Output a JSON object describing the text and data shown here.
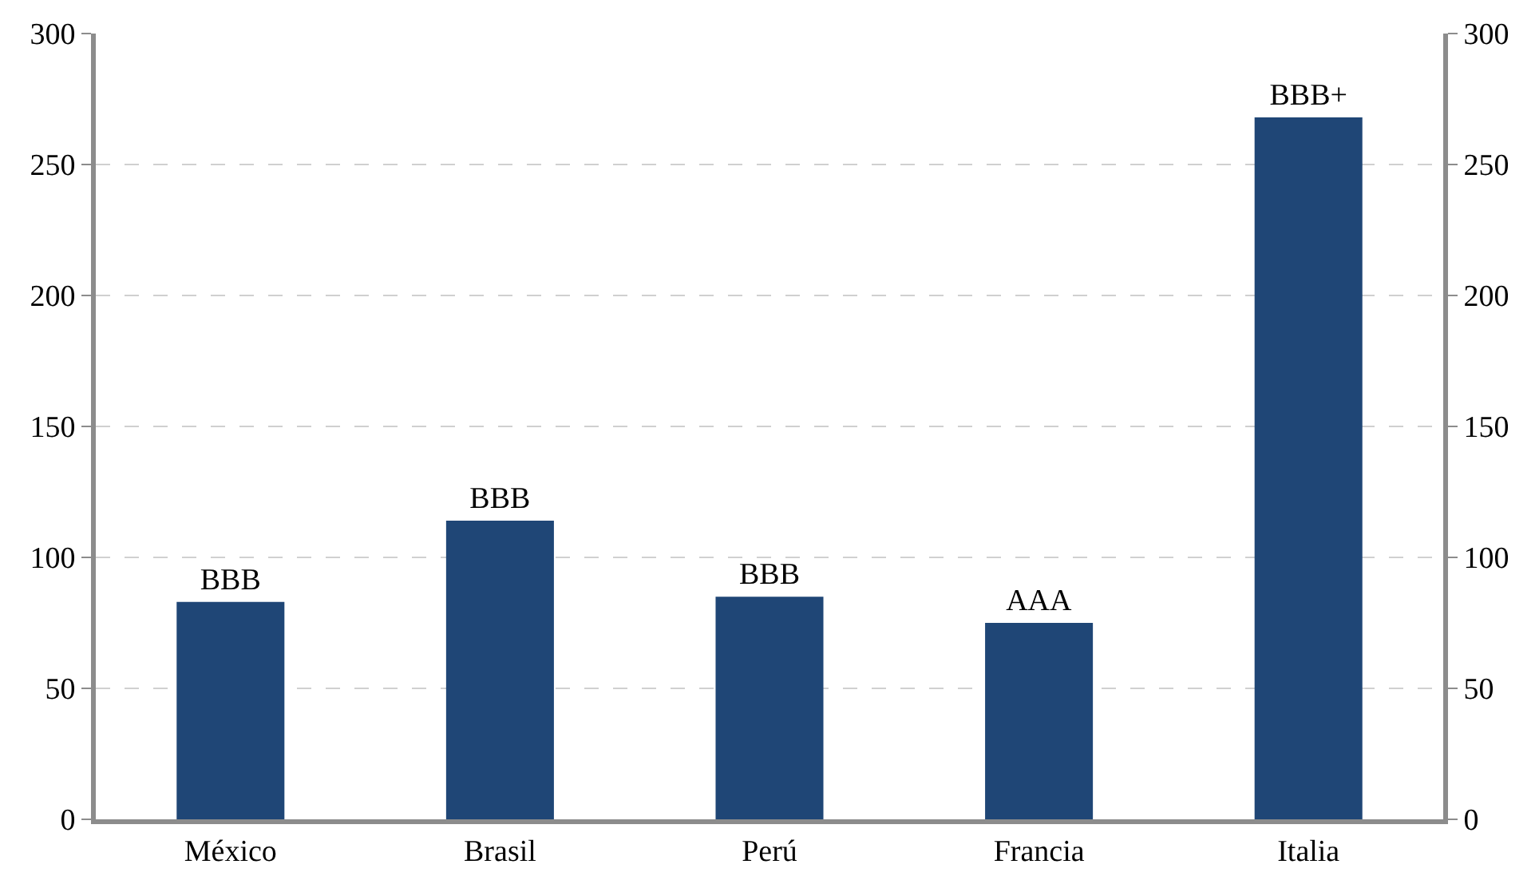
{
  "chart_data": {
    "type": "bar",
    "categories": [
      "México",
      "Brasil",
      "Perú",
      "Francia",
      "Italia"
    ],
    "values": [
      83,
      114,
      85,
      75,
      268
    ],
    "value_labels": [
      "BBB",
      "BBB",
      "BBB",
      "AAA",
      "BBB+"
    ],
    "color": "#1f4676",
    "ylim": [
      0,
      300
    ],
    "yticks": [
      0,
      50,
      100,
      150,
      200,
      250,
      300
    ],
    "y2lim": [
      0,
      300
    ],
    "y2ticks": [
      0,
      50,
      100,
      150,
      200,
      250,
      300
    ],
    "grid": "y",
    "legend": false
  }
}
